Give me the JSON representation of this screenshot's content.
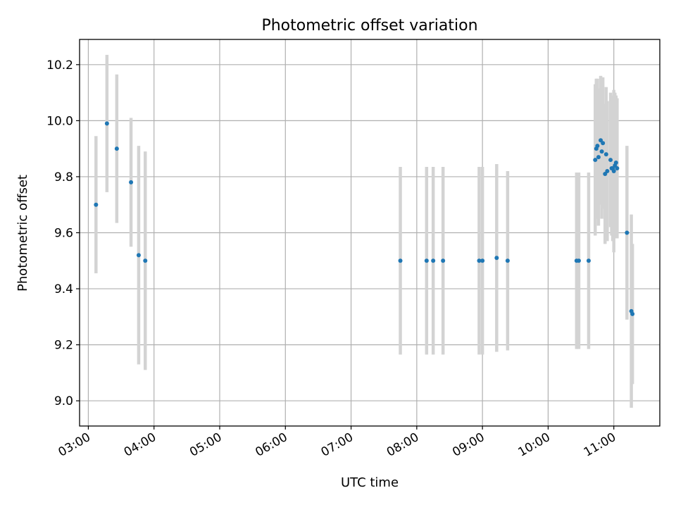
{
  "chart_data": {
    "type": "scatter",
    "title": "Photometric offset variation",
    "xlabel": "UTC time",
    "ylabel": "Photometric offset",
    "grid": true,
    "x_ticks": [
      "03:00",
      "04:00",
      "05:00",
      "06:00",
      "07:00",
      "08:00",
      "09:00",
      "10:00",
      "11:00"
    ],
    "y_ticks": [
      "9.0",
      "9.2",
      "9.4",
      "9.6",
      "9.8",
      "10.0",
      "10.2"
    ],
    "xlim": [
      "02:52",
      "11:42"
    ],
    "ylim": [
      8.91,
      10.29
    ],
    "colors": {
      "point": "#1f77b4",
      "errorbar": "#d3d3d3"
    },
    "series": [
      {
        "points": [
          {
            "x": "03:07",
            "y": 9.7,
            "err": 0.245
          },
          {
            "x": "03:17",
            "y": 9.99,
            "err": 0.245
          },
          {
            "x": "03:26",
            "y": 9.9,
            "err": 0.265
          },
          {
            "x": "03:39",
            "y": 9.78,
            "err": 0.23
          },
          {
            "x": "03:46",
            "y": 9.52,
            "err": 0.39
          },
          {
            "x": "03:52",
            "y": 9.5,
            "err": 0.39
          },
          {
            "x": "07:45",
            "y": 9.5,
            "err": 0.335
          },
          {
            "x": "08:09",
            "y": 9.5,
            "err": 0.335
          },
          {
            "x": "08:15",
            "y": 9.5,
            "err": 0.335
          },
          {
            "x": "08:24",
            "y": 9.5,
            "err": 0.335
          },
          {
            "x": "08:57",
            "y": 9.5,
            "err": 0.335
          },
          {
            "x": "09:00",
            "y": 9.5,
            "err": 0.335
          },
          {
            "x": "09:13",
            "y": 9.51,
            "err": 0.335
          },
          {
            "x": "09:23",
            "y": 9.5,
            "err": 0.32
          },
          {
            "x": "10:26",
            "y": 9.5,
            "err": 0.315
          },
          {
            "x": "10:28",
            "y": 9.5,
            "err": 0.315
          },
          {
            "x": "10:37",
            "y": 9.5,
            "err": 0.315
          },
          {
            "x": "10:43",
            "y": 9.86,
            "err": 0.27
          },
          {
            "x": "10:44",
            "y": 9.9,
            "err": 0.25
          },
          {
            "x": "10:45",
            "y": 9.91,
            "err": 0.24
          },
          {
            "x": "10:46",
            "y": 9.87,
            "err": 0.245
          },
          {
            "x": "10:48",
            "y": 9.93,
            "err": 0.23
          },
          {
            "x": "10:49",
            "y": 9.89,
            "err": 0.24
          },
          {
            "x": "10:50",
            "y": 9.92,
            "err": 0.235
          },
          {
            "x": "10:52",
            "y": 9.81,
            "err": 0.25
          },
          {
            "x": "10:53",
            "y": 9.88,
            "err": 0.24
          },
          {
            "x": "10:54",
            "y": 9.82,
            "err": 0.25
          },
          {
            "x": "10:57",
            "y": 9.86,
            "err": 0.24
          },
          {
            "x": "10:58",
            "y": 9.83,
            "err": 0.24
          },
          {
            "x": "10:59",
            "y": 9.83,
            "err": 0.26
          },
          {
            "x": "11:00",
            "y": 9.82,
            "err": 0.29
          },
          {
            "x": "11:01",
            "y": 9.84,
            "err": 0.26
          },
          {
            "x": "11:02",
            "y": 9.85,
            "err": 0.24
          },
          {
            "x": "11:03",
            "y": 9.83,
            "err": 0.25
          },
          {
            "x": "11:12",
            "y": 9.6,
            "err": 0.31
          },
          {
            "x": "11:16",
            "y": 9.32,
            "err": 0.345
          },
          {
            "x": "11:17",
            "y": 9.31,
            "err": 0.25
          }
        ]
      }
    ]
  }
}
